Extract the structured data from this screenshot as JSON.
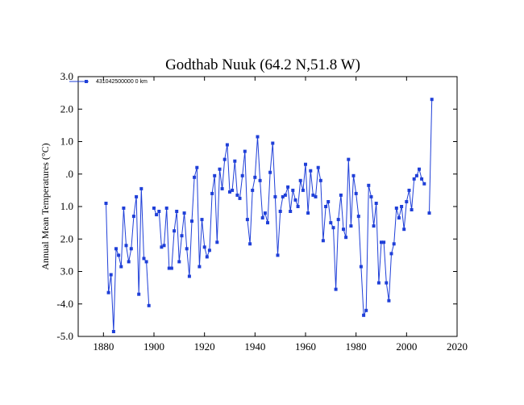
{
  "chart_data": {
    "type": "line",
    "title": "Godthab Nuuk (64.2 N,51.8 W)",
    "xlabel": "",
    "ylabel": "Annual Mean Temperatures (°C)",
    "xlim": [
      1870,
      2020
    ],
    "ylim": [
      -5.0,
      3.0
    ],
    "x_ticks": [
      1880,
      1900,
      1920,
      1940,
      1960,
      1980,
      2000,
      2020
    ],
    "y_ticks": [
      {
        "value": 3.0,
        "label": "3.0"
      },
      {
        "value": 2.0,
        "label": "2.0"
      },
      {
        "value": 1.0,
        "label": "1.0"
      },
      {
        "value": 0.0,
        "label": ".0"
      },
      {
        "value": -1.0,
        "label": "1.0"
      },
      {
        "value": -2.0,
        "label": "2.0"
      },
      {
        "value": -3.0,
        "label": "3.0"
      },
      {
        "value": -4.0,
        "label": "-4.0"
      },
      {
        "value": -5.0,
        "label": "-5.0"
      }
    ],
    "grid": false,
    "legend_position": "top-left",
    "series": [
      {
        "name": "431042500000 0 km",
        "color": "#1f3fd8",
        "points": [
          [
            1881,
            -0.9
          ],
          [
            1882,
            -3.65
          ],
          [
            1883,
            -3.1
          ],
          [
            1884,
            -4.85
          ],
          [
            1885,
            -2.3
          ],
          [
            1886,
            -2.5
          ],
          [
            1887,
            -2.85
          ],
          [
            1888,
            -1.05
          ],
          [
            1889,
            -2.2
          ],
          [
            1890,
            -2.7
          ],
          [
            1891,
            -2.3
          ],
          [
            1892,
            -1.3
          ],
          [
            1893,
            -0.7
          ],
          [
            1894,
            -3.7
          ],
          [
            1895,
            -0.45
          ],
          [
            1896,
            -2.6
          ],
          [
            1897,
            -2.7
          ],
          [
            1898,
            -4.05
          ],
          [
            1900,
            -1.05
          ],
          [
            1901,
            -1.25
          ],
          [
            1902,
            -1.15
          ],
          [
            1903,
            -2.25
          ],
          [
            1904,
            -2.2
          ],
          [
            1905,
            -1.05
          ],
          [
            1906,
            -2.9
          ],
          [
            1907,
            -2.9
          ],
          [
            1908,
            -1.75
          ],
          [
            1909,
            -1.15
          ],
          [
            1910,
            -2.7
          ],
          [
            1911,
            -1.9
          ],
          [
            1912,
            -1.2
          ],
          [
            1913,
            -2.3
          ],
          [
            1914,
            -3.15
          ],
          [
            1915,
            -1.45
          ],
          [
            1916,
            -0.1
          ],
          [
            1917,
            0.2
          ],
          [
            1918,
            -2.85
          ],
          [
            1919,
            -1.4
          ],
          [
            1920,
            -2.25
          ],
          [
            1921,
            -2.55
          ],
          [
            1922,
            -2.35
          ],
          [
            1923,
            -0.6
          ],
          [
            1924,
            -0.05
          ],
          [
            1925,
            -2.1
          ],
          [
            1926,
            0.15
          ],
          [
            1927,
            -0.45
          ],
          [
            1928,
            0.45
          ],
          [
            1929,
            0.9
          ],
          [
            1930,
            -0.55
          ],
          [
            1931,
            -0.5
          ],
          [
            1932,
            0.4
          ],
          [
            1933,
            -0.65
          ],
          [
            1934,
            -0.75
          ],
          [
            1935,
            -0.05
          ],
          [
            1936,
            0.7
          ],
          [
            1937,
            -1.4
          ],
          [
            1938,
            -2.15
          ],
          [
            1939,
            -0.5
          ],
          [
            1940,
            -0.1
          ],
          [
            1941,
            1.15
          ],
          [
            1942,
            -0.2
          ],
          [
            1943,
            -1.35
          ],
          [
            1944,
            -1.2
          ],
          [
            1945,
            -1.5
          ],
          [
            1946,
            0.05
          ],
          [
            1947,
            0.95
          ],
          [
            1948,
            -0.7
          ],
          [
            1949,
            -2.5
          ],
          [
            1950,
            -1.15
          ],
          [
            1951,
            -0.7
          ],
          [
            1952,
            -0.65
          ],
          [
            1953,
            -0.4
          ],
          [
            1954,
            -1.15
          ],
          [
            1955,
            -0.5
          ],
          [
            1956,
            -0.8
          ],
          [
            1957,
            -1.0
          ],
          [
            1958,
            -0.2
          ],
          [
            1959,
            -0.5
          ],
          [
            1960,
            0.3
          ],
          [
            1961,
            -1.2
          ],
          [
            1962,
            0.1
          ],
          [
            1963,
            -0.65
          ],
          [
            1964,
            -0.7
          ],
          [
            1965,
            0.2
          ],
          [
            1966,
            -0.2
          ],
          [
            1967,
            -2.05
          ],
          [
            1968,
            -1.0
          ],
          [
            1969,
            -0.85
          ],
          [
            1970,
            -1.5
          ],
          [
            1971,
            -1.65
          ],
          [
            1972,
            -3.55
          ],
          [
            1973,
            -1.4
          ],
          [
            1974,
            -0.65
          ],
          [
            1975,
            -1.7
          ],
          [
            1976,
            -1.95
          ],
          [
            1977,
            0.45
          ],
          [
            1978,
            -1.6
          ],
          [
            1979,
            -0.05
          ],
          [
            1980,
            -0.6
          ],
          [
            1981,
            -1.3
          ],
          [
            1982,
            -2.85
          ],
          [
            1983,
            -4.35
          ],
          [
            1984,
            -4.2
          ],
          [
            1985,
            -0.35
          ],
          [
            1986,
            -0.7
          ],
          [
            1987,
            -1.6
          ],
          [
            1988,
            -0.9
          ],
          [
            1989,
            -3.35
          ],
          [
            1990,
            -2.1
          ],
          [
            1991,
            -2.1
          ],
          [
            1992,
            -3.35
          ],
          [
            1993,
            -3.9
          ],
          [
            1994,
            -2.45
          ],
          [
            1995,
            -2.15
          ],
          [
            1996,
            -1.05
          ],
          [
            1997,
            -1.35
          ],
          [
            1998,
            -1.0
          ],
          [
            1999,
            -1.7
          ],
          [
            2000,
            -0.85
          ],
          [
            2001,
            -0.5
          ],
          [
            2002,
            -1.1
          ],
          [
            2003,
            -0.15
          ],
          [
            2004,
            -0.05
          ],
          [
            2005,
            0.15
          ],
          [
            2006,
            -0.15
          ],
          [
            2007,
            -0.3
          ],
          [
            2009,
            -1.2
          ],
          [
            2010,
            2.3
          ]
        ]
      }
    ]
  }
}
